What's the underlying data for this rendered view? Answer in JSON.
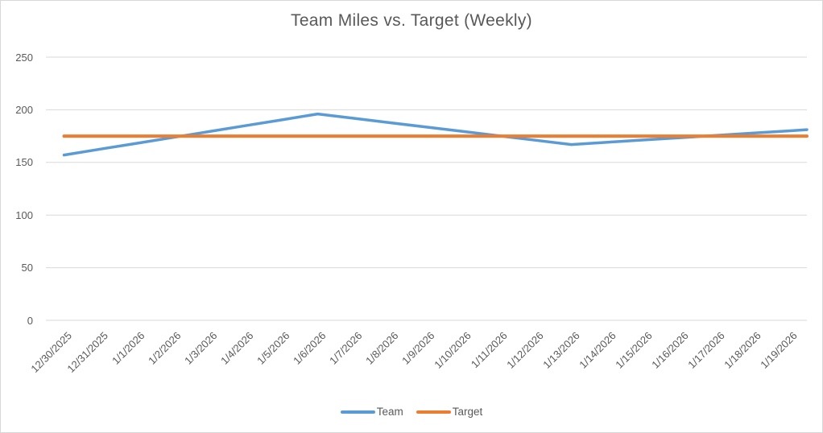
{
  "colors": {
    "team_line": "#5B9BD5",
    "target_line": "#ED7D31",
    "grid": "#D9D9D9",
    "text": "#595959",
    "background": "#FFFFFF",
    "border": "#D8D8D8"
  },
  "chart_data": {
    "type": "line",
    "title": "Team Miles vs. Target (Weekly)",
    "categories": [
      "12/30/2025",
      "12/31/2025",
      "1/1/2026",
      "1/2/2026",
      "1/3/2026",
      "1/4/2026",
      "1/5/2026",
      "1/6/2026",
      "1/7/2026",
      "1/8/2026",
      "1/9/2026",
      "1/10/2026",
      "1/11/2026",
      "1/12/2026",
      "1/13/2026",
      "1/14/2026",
      "1/15/2026",
      "1/16/2026",
      "1/17/2026",
      "1/18/2026",
      "1/19/2026"
    ],
    "series": [
      {
        "name": "Team",
        "color": "#5B9BD5",
        "values": [
          157,
          162.6,
          168.1,
          173.7,
          179.3,
          184.9,
          190.4,
          196,
          191.9,
          187.7,
          183.6,
          179.4,
          175.3,
          171.1,
          167,
          169.2,
          171.3,
          173.5,
          175.7,
          177.8,
          180
        ]
      },
      {
        "name": "Target",
        "color": "#ED7D31",
        "values": [
          175,
          175,
          175,
          175,
          175,
          175,
          175,
          175,
          175,
          175,
          175,
          175,
          175,
          175,
          175,
          175,
          175,
          175,
          175,
          175,
          175
        ]
      }
    ],
    "xlabel": "",
    "ylabel": "",
    "y_axis": {
      "ticks": [
        0,
        50,
        100,
        150,
        200,
        250
      ],
      "min": 0,
      "max": 250
    },
    "x_tick_rotation": 45,
    "grid": "horizontal",
    "legend_position": "bottom",
    "notes": "Team line is piecewise linear with weekly anchor points: 157 on 12/30/2025, peak 196 on 1/6/2026, dip 167 on 1/13/2026, 180 on 1/19/2026; Target is constant 175. Both lines extend to the right plot edge."
  }
}
